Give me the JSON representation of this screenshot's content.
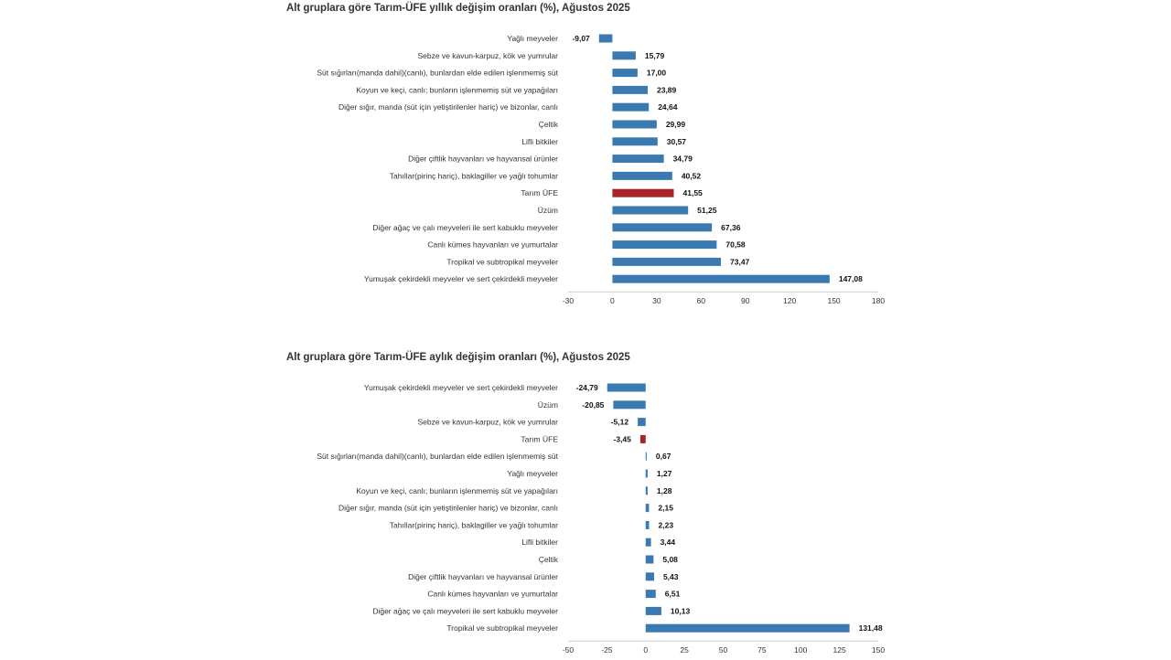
{
  "chart_data": [
    {
      "type": "bar",
      "orientation": "horizontal",
      "title": "Alt gruplara göre Tarım-ÜFE yıllık değişim oranları (%), Ağustos 2025",
      "categories": [
        "Yağlı meyveler",
        "Sebze ve kavun-karpuz, kök ve yumrular",
        "Süt sığırları(manda dahil)(canlı), bunlardan elde edilen işlenmemiş süt",
        "Koyun ve keçi, canlı; bunların işlenmemiş süt ve yapağıları",
        "Diğer sığır, manda (süt için yetiştirilenler hariç) ve bizonlar, canlı",
        "Çeltik",
        "Lifli bitkiler",
        "Diğer çiftlik hayvanları ve hayvansal ürünler",
        "Tahıllar(pirinç hariç), baklagiller ve yağlı tohumlar",
        "Tarım ÜFE",
        "Üzüm",
        "Diğer ağaç ve çalı meyveleri ile sert kabuklu meyveler",
        "Canlı kümes hayvanları ve yumurtalar",
        "Tropikal ve subtropikal meyveler",
        "Yumuşak çekirdekli meyveler ve sert çekirdekli meyveler"
      ],
      "values": [
        -9.07,
        15.79,
        17.0,
        23.89,
        24.64,
        29.99,
        30.57,
        34.79,
        40.52,
        41.55,
        51.25,
        67.36,
        70.58,
        73.47,
        147.08
      ],
      "value_labels": [
        "-9,07",
        "15,79",
        "17,00",
        "23,89",
        "24,64",
        "29,99",
        "30,57",
        "34,79",
        "40,52",
        "41,55",
        "51,25",
        "67,36",
        "70,58",
        "73,47",
        "147,08"
      ],
      "highlight_category": "Tarım ÜFE",
      "xlim": [
        -30,
        180
      ],
      "x_ticks": [
        -30,
        0,
        30,
        60,
        90,
        120,
        150,
        180
      ],
      "x_tick_labels": [
        "-30",
        "0",
        "30",
        "60",
        "90",
        "120",
        "150",
        "180"
      ],
      "grid": false
    },
    {
      "type": "bar",
      "orientation": "horizontal",
      "title": "Alt gruplara göre Tarım-ÜFE aylık değişim oranları (%), Ağustos 2025",
      "categories": [
        "Yumuşak çekirdekli meyveler ve sert çekirdekli meyveler",
        "Üzüm",
        "Sebze ve kavun-karpuz, kök ve yumrular",
        "Tarım ÜFE",
        "Süt sığırları(manda dahil)(canlı), bunlardan elde edilen işlenmemiş süt",
        "Yağlı meyveler",
        "Koyun ve keçi, canlı; bunların işlenmemiş süt ve yapağıları",
        "Diğer sığır, manda (süt için yetiştirilenler hariç) ve bizonlar, canlı",
        "Tahıllar(pirinç hariç), baklagiller ve yağlı tohumlar",
        "Lifli bitkiler",
        "Çeltik",
        "Diğer çiftlik hayvanları ve hayvansal ürünler",
        "Canlı kümes hayvanları ve yumurtalar",
        "Diğer ağaç ve çalı meyveleri ile sert kabuklu meyveler",
        "Tropikal ve subtropikal meyveler"
      ],
      "values": [
        -24.79,
        -20.85,
        -5.12,
        -3.45,
        0.67,
        1.27,
        1.28,
        2.15,
        2.23,
        3.44,
        5.08,
        5.43,
        6.51,
        10.13,
        131.48
      ],
      "value_labels": [
        "-24,79",
        "-20,85",
        "-5,12",
        "-3,45",
        "0,67",
        "1,27",
        "1,28",
        "2,15",
        "2,23",
        "3,44",
        "5,08",
        "5,43",
        "6,51",
        "10,13",
        "131,48"
      ],
      "highlight_category": "Tarım ÜFE",
      "xlim": [
        -50,
        150
      ],
      "x_ticks": [
        -50,
        -25,
        0,
        25,
        50,
        75,
        100,
        125,
        150
      ],
      "x_tick_labels": [
        "-50",
        "-25",
        "0",
        "25",
        "50",
        "75",
        "100",
        "125",
        "150"
      ],
      "grid": false
    }
  ],
  "colors": {
    "bar": "#3a7ab0",
    "highlight": "#a8232a",
    "axis_line": "#cccccc",
    "text": "#333333"
  }
}
